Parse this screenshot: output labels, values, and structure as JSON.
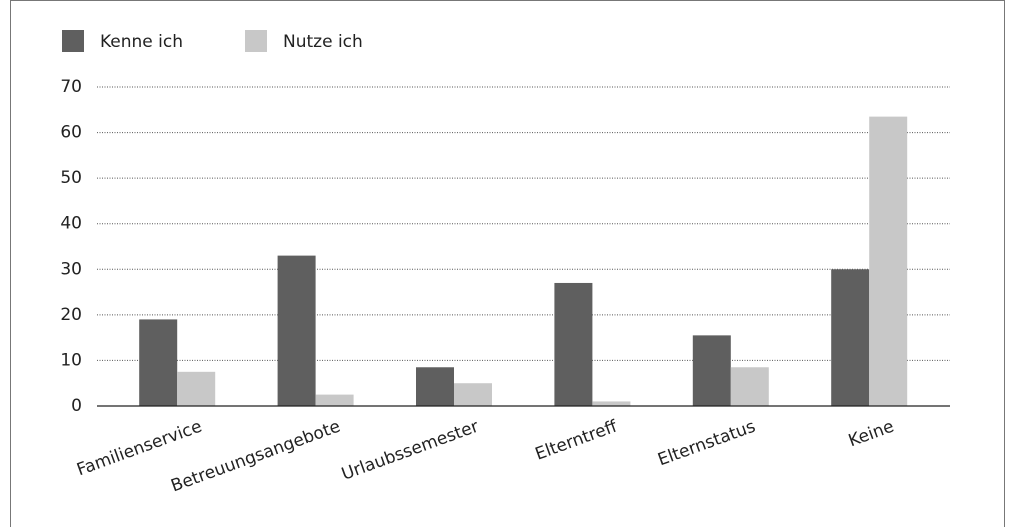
{
  "chart_data": {
    "type": "bar",
    "categories": [
      "Familienservice",
      "Betreuungsangebote",
      "Urlaubssemester",
      "Elterntreff",
      "Elternstatus",
      "Keine"
    ],
    "series": [
      {
        "name": "Kenne ich",
        "color": "#5f5f5f",
        "values": [
          19,
          33,
          8.5,
          27,
          15.5,
          30
        ]
      },
      {
        "name": "Nutze ich",
        "color": "#c8c8c8",
        "values": [
          7.5,
          2.5,
          5,
          1,
          8.5,
          63.5
        ]
      }
    ],
    "ylim": [
      0,
      70
    ],
    "yticks": [
      0,
      10,
      20,
      30,
      40,
      50,
      60,
      70
    ],
    "grid": true,
    "legend": "top-left"
  }
}
